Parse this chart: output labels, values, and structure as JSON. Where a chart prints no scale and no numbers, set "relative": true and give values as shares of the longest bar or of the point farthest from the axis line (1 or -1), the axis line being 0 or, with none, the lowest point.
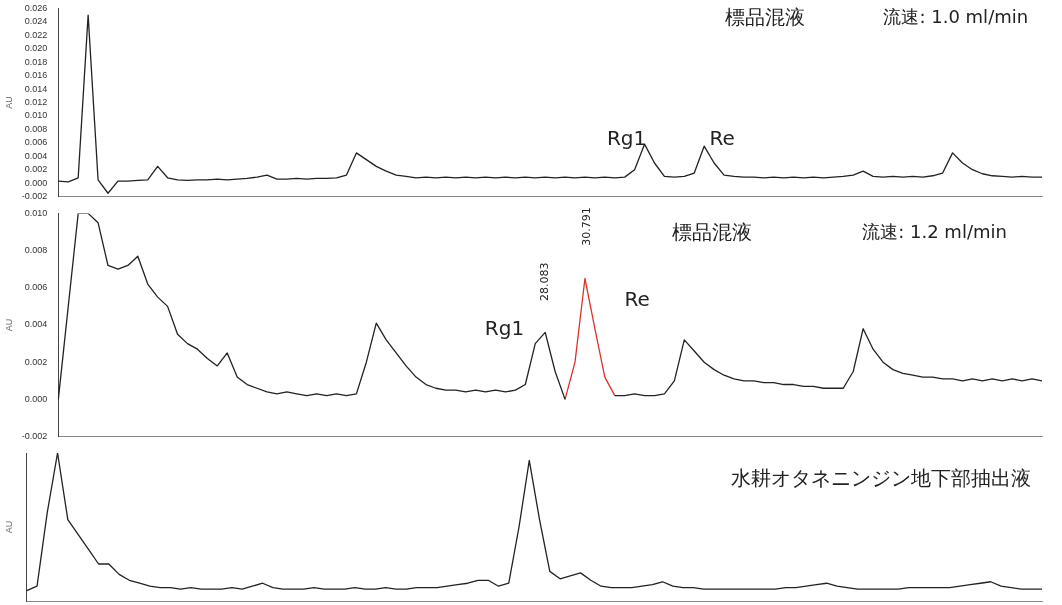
{
  "chart_data": [
    {
      "type": "line",
      "ylabel": "AU",
      "grid": false,
      "legend": false,
      "tick_labels": "y",
      "marker": "none",
      "annotations": [
        "標品混液",
        "流速: 1.0 ml/min",
        "Rg1",
        "Re"
      ],
      "categories": [
        null,
        null,
        null,
        null,
        null,
        null,
        null,
        null,
        null,
        null,
        null,
        null,
        null,
        null,
        null,
        null,
        null,
        null,
        null,
        null,
        null,
        null,
        null,
        null,
        null,
        null,
        null,
        null,
        null,
        null,
        null,
        null,
        null,
        null,
        null,
        null,
        null,
        null,
        null,
        null,
        null,
        null,
        null,
        null,
        null,
        null,
        null,
        null,
        null,
        null,
        null,
        null,
        null,
        null,
        null,
        null,
        null,
        null,
        null,
        null,
        null,
        null,
        null,
        null,
        null,
        null,
        null,
        null,
        null,
        null,
        null,
        null,
        null,
        null,
        null,
        null,
        null,
        null,
        null,
        null,
        null,
        null,
        null,
        null,
        null,
        null,
        null,
        null,
        null,
        null,
        null,
        null,
        null,
        null,
        null,
        null,
        null,
        null,
        null,
        null
      ],
      "ylim": [
        -0.002,
        0.026
      ],
      "yticks": [
        {
          "value": -0.002,
          "label": "-0.002"
        },
        {
          "value": 0,
          "label": "0.000"
        },
        {
          "value": 0.002,
          "label": "0.002"
        },
        {
          "value": 0.004,
          "label": "0.004"
        },
        {
          "value": 0.006,
          "label": "0.006"
        },
        {
          "value": 0.008,
          "label": "0.008"
        },
        {
          "value": 0.01,
          "label": "0.010"
        },
        {
          "value": 0.012,
          "label": "0.012"
        },
        {
          "value": 0.014,
          "label": "0.014"
        },
        {
          "value": 0.016,
          "label": "0.016"
        },
        {
          "value": 0.018,
          "label": "0.018"
        },
        {
          "value": 0.02,
          "label": "0.020"
        },
        {
          "value": 0.022,
          "label": "0.022"
        },
        {
          "value": 0.024,
          "label": "0.024"
        },
        {
          "value": 0.026,
          "label": "0.026"
        }
      ],
      "series": [
        {
          "color": "#222222",
          "values": [
            0.0003,
            0.0002,
            0.0008,
            0.025,
            0.0005,
            -0.0015,
            0.0003,
            0.0003,
            0.0004,
            0.0005,
            0.0025,
            0.0008,
            0.0005,
            0.0004,
            0.0005,
            0.0005,
            0.0006,
            0.0005,
            0.0006,
            0.0007,
            0.0009,
            0.0012,
            0.0006,
            0.0006,
            0.0007,
            0.0006,
            0.0007,
            0.0007,
            0.0008,
            0.0012,
            0.0045,
            0.0035,
            0.0025,
            0.0018,
            0.0012,
            0.001,
            0.0008,
            0.0009,
            0.0008,
            0.0009,
            0.0008,
            0.0009,
            0.0008,
            0.0009,
            0.0008,
            0.0009,
            0.0008,
            0.0009,
            0.0008,
            0.0009,
            0.0008,
            0.0009,
            0.0008,
            0.0009,
            0.0008,
            0.0009,
            0.0008,
            0.0009,
            0.002,
            0.0058,
            0.003,
            0.001,
            0.0009,
            0.001,
            0.0015,
            0.0055,
            0.003,
            0.0012,
            0.001,
            0.0009,
            0.0009,
            0.0008,
            0.0009,
            0.0008,
            0.0009,
            0.0008,
            0.0009,
            0.0008,
            0.0009,
            0.001,
            0.0012,
            0.0018,
            0.001,
            0.0009,
            0.001,
            0.0009,
            0.001,
            0.0009,
            0.0011,
            0.0015,
            0.0045,
            0.003,
            0.002,
            0.0014,
            0.0011,
            0.001,
            0.0009,
            0.001,
            0.0009,
            0.0009
          ]
        }
      ]
    },
    {
      "type": "line",
      "ylabel": "AU",
      "grid": false,
      "legend": false,
      "tick_labels": "y",
      "marker": "none",
      "annotations": [
        "標品混液",
        "流速: 1.2 ml/min",
        "Rg1",
        "Re",
        "28.083",
        "30.791"
      ],
      "categories": [
        null,
        null,
        null,
        null,
        null,
        null,
        null,
        null,
        null,
        null,
        null,
        null,
        null,
        null,
        null,
        null,
        null,
        null,
        null,
        null,
        null,
        null,
        null,
        null,
        null,
        null,
        null,
        null,
        null,
        null,
        null,
        null,
        null,
        null,
        null,
        null,
        null,
        null,
        null,
        null,
        null,
        null,
        null,
        null,
        null,
        null,
        null,
        null,
        null,
        null,
        null,
        null,
        null,
        null,
        null,
        null,
        null,
        null,
        null,
        null,
        null,
        null,
        null,
        null,
        null,
        null,
        null,
        null,
        null,
        null,
        null,
        null,
        null,
        null,
        null,
        null,
        null,
        null,
        null,
        null,
        null,
        null,
        null,
        null,
        null,
        null,
        null,
        null,
        null,
        null,
        null,
        null,
        null,
        null,
        null,
        null,
        null,
        null,
        null,
        null
      ],
      "ylim": [
        -0.002,
        0.01
      ],
      "yticks": [
        {
          "value": -0.002,
          "label": "-0.002"
        },
        {
          "value": 0,
          "label": "0.000"
        },
        {
          "value": 0.002,
          "label": "0.002"
        },
        {
          "value": 0.004,
          "label": "0.004"
        },
        {
          "value": 0.006,
          "label": "0.006"
        },
        {
          "value": 0.008,
          "label": "0.008"
        },
        {
          "value": 0.01,
          "label": "0.010"
        }
      ],
      "series": [
        {
          "color": "#222222",
          "values": [
            0,
            0.005,
            0.01,
            0.01,
            0.0095,
            0.0072,
            0.007,
            0.0072,
            0.0077,
            0.0062,
            0.0055,
            0.005,
            0.0035,
            0.003,
            0.0027,
            0.0022,
            0.0018,
            0.0025,
            0.0012,
            0.0008,
            0.0006,
            0.0004,
            0.0003,
            0.0004,
            0.0003,
            0.0002,
            0.0003,
            0.0002,
            0.0003,
            0.0002,
            0.0003,
            0.002,
            0.0041,
            0.0032,
            0.0025,
            0.0018,
            0.0012,
            0.0008,
            0.0006,
            0.0005,
            0.0005,
            0.0004,
            0.0005,
            0.0004,
            0.0005,
            0.0004,
            0.0005,
            0.0008,
            0.003,
            0.0036,
            0.0015,
            0,
            null,
            null,
            null,
            null,
            0.0002,
            0.0002,
            0.0003,
            0.0002,
            0.0002,
            0.0003,
            0.001,
            0.0032,
            0.0026,
            0.002,
            0.0016,
            0.0013,
            0.0011,
            0.001,
            0.001,
            0.0009,
            0.0009,
            0.0008,
            0.0008,
            0.0007,
            0.0007,
            0.0006,
            0.0006,
            0.0006,
            0.0015,
            0.0038,
            0.0027,
            0.002,
            0.0016,
            0.0014,
            0.0013,
            0.0012,
            0.0012,
            0.0011,
            0.0011,
            0.001,
            0.0011,
            0.001,
            0.0011,
            0.001,
            0.0011,
            0.001,
            0.0011,
            0.001
          ]
        },
        {
          "color": "#d9332b",
          "values": [
            null,
            null,
            null,
            null,
            null,
            null,
            null,
            null,
            null,
            null,
            null,
            null,
            null,
            null,
            null,
            null,
            null,
            null,
            null,
            null,
            null,
            null,
            null,
            null,
            null,
            null,
            null,
            null,
            null,
            null,
            null,
            null,
            null,
            null,
            null,
            null,
            null,
            null,
            null,
            null,
            null,
            null,
            null,
            null,
            null,
            null,
            null,
            null,
            null,
            null,
            null,
            0,
            0.002,
            0.0065,
            0.0038,
            0.0012,
            0.0002,
            null,
            null,
            null,
            null,
            null,
            null,
            null,
            null,
            null,
            null,
            null,
            null,
            null,
            null,
            null,
            null,
            null,
            null,
            null,
            null,
            null,
            null,
            null,
            null,
            null,
            null,
            null,
            null,
            null,
            null,
            null,
            null,
            null,
            null,
            null,
            null,
            null,
            null,
            null,
            null,
            null,
            null,
            null
          ]
        }
      ]
    },
    {
      "type": "line",
      "ylabel": "AU",
      "grid": false,
      "legend": false,
      "tick_labels": false,
      "marker": "none",
      "relative": true,
      "annotations": [
        "水耕オタネニンジン地下部抽出液"
      ],
      "categories": [
        null,
        null,
        null,
        null,
        null,
        null,
        null,
        null,
        null,
        null,
        null,
        null,
        null,
        null,
        null,
        null,
        null,
        null,
        null,
        null,
        null,
        null,
        null,
        null,
        null,
        null,
        null,
        null,
        null,
        null,
        null,
        null,
        null,
        null,
        null,
        null,
        null,
        null,
        null,
        null,
        null,
        null,
        null,
        null,
        null,
        null,
        null,
        null,
        null,
        null,
        null,
        null,
        null,
        null,
        null,
        null,
        null,
        null,
        null,
        null,
        null,
        null,
        null,
        null,
        null,
        null,
        null,
        null,
        null,
        null,
        null,
        null,
        null,
        null,
        null,
        null,
        null,
        null,
        null,
        null,
        null,
        null,
        null,
        null,
        null,
        null,
        null,
        null,
        null,
        null,
        null,
        null,
        null,
        null,
        null,
        null,
        null,
        null,
        null,
        null
      ],
      "series": [
        {
          "color": "#222222",
          "values": [
            0.07,
            0.1,
            0.6,
            1,
            0.55,
            0.45,
            0.35,
            0.25,
            0.25,
            0.18,
            0.14,
            0.12,
            0.1,
            0.09,
            0.09,
            0.08,
            0.09,
            0.08,
            0.08,
            0.08,
            0.09,
            0.08,
            0.1,
            0.12,
            0.09,
            0.08,
            0.08,
            0.08,
            0.09,
            0.08,
            0.08,
            0.08,
            0.09,
            0.08,
            0.08,
            0.09,
            0.08,
            0.08,
            0.09,
            0.09,
            0.09,
            0.1,
            0.11,
            0.12,
            0.14,
            0.14,
            0.1,
            0.12,
            0.5,
            0.95,
            0.55,
            0.2,
            0.15,
            0.17,
            0.19,
            0.14,
            0.1,
            0.09,
            0.09,
            0.09,
            0.1,
            0.11,
            0.13,
            0.1,
            0.09,
            0.09,
            0.08,
            0.08,
            0.08,
            0.08,
            0.08,
            0.08,
            0.08,
            0.08,
            0.09,
            0.09,
            0.1,
            0.11,
            0.12,
            0.1,
            0.09,
            0.08,
            0.08,
            0.08,
            0.08,
            0.08,
            0.09,
            0.09,
            0.09,
            0.09,
            0.09,
            0.1,
            0.11,
            0.12,
            0.13,
            0.1,
            0.09,
            0.08,
            0.08,
            0.08
          ]
        }
      ]
    }
  ]
}
